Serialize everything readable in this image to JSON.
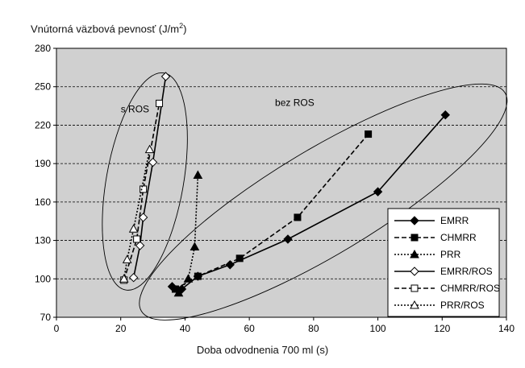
{
  "chart_data": {
    "type": "scatter",
    "title": "",
    "ylabel_text": "Vnútorná väzbová pevnosť (J/m",
    "ylabel_sup": "2",
    "ylabel_close": ")",
    "xlabel": "Doba odvodnenia 700 ml (s)",
    "xlim": [
      0,
      140
    ],
    "ylim": [
      70,
      280
    ],
    "xticks": [
      0,
      20,
      40,
      60,
      80,
      100,
      120,
      140
    ],
    "yticks": [
      70,
      100,
      130,
      160,
      190,
      220,
      250,
      280
    ],
    "grid": "horizontal-dashed",
    "legend_position": "lower-right",
    "annotations": [
      {
        "text": "s ROS",
        "x": 20,
        "y": 230
      },
      {
        "text": "bez ROS",
        "x": 68,
        "y": 235
      }
    ],
    "groupings": [
      {
        "label": "s ROS",
        "center": [
          27.5,
          176
        ],
        "radii": [
          12,
          86
        ],
        "rotation_deg": 10
      },
      {
        "label": "bez ROS",
        "center": [
          83,
          160
        ],
        "radii": [
          66,
          41
        ],
        "rotation_deg": -31
      }
    ],
    "series": [
      {
        "name": "EMRR",
        "line": "solid",
        "marker": "diamond",
        "fill": "filled",
        "color": "#000000",
        "points": [
          [
            36,
            94
          ],
          [
            39,
            92
          ],
          [
            44,
            102
          ],
          [
            54,
            111
          ],
          [
            72,
            131
          ],
          [
            100,
            168
          ],
          [
            121,
            228
          ]
        ]
      },
      {
        "name": "CHMRR",
        "line": "dashed",
        "marker": "square",
        "fill": "filled",
        "color": "#000000",
        "points": [
          [
            37,
            92
          ],
          [
            44,
            102
          ],
          [
            57,
            116
          ],
          [
            75,
            148
          ],
          [
            97,
            213
          ]
        ]
      },
      {
        "name": "PRR",
        "line": "dotted",
        "marker": "triangle",
        "fill": "filled",
        "color": "#000000",
        "points": [
          [
            38,
            89
          ],
          [
            41,
            100
          ],
          [
            43,
            125
          ],
          [
            44,
            181
          ]
        ]
      },
      {
        "name": "EMRR/ROS",
        "line": "solid",
        "marker": "diamond",
        "fill": "open",
        "color": "#000000",
        "points": [
          [
            24,
            101
          ],
          [
            26,
            126
          ],
          [
            27,
            148
          ],
          [
            30,
            191
          ],
          [
            34,
            258
          ]
        ]
      },
      {
        "name": "CHMRR/ROS",
        "line": "dashed",
        "marker": "square",
        "fill": "open",
        "color": "#000000",
        "points": [
          [
            21,
            99
          ],
          [
            25,
            131
          ],
          [
            27,
            170
          ],
          [
            32,
            237
          ]
        ]
      },
      {
        "name": "PRR/ROS",
        "line": "dotted",
        "marker": "triangle",
        "fill": "open",
        "color": "#000000",
        "points": [
          [
            21,
            100
          ],
          [
            22,
            115
          ],
          [
            24,
            139
          ],
          [
            29,
            201
          ]
        ]
      }
    ]
  },
  "colors": {
    "plot_background": "#d0d0d0",
    "page_background": "#ffffff",
    "ink": "#000000"
  }
}
